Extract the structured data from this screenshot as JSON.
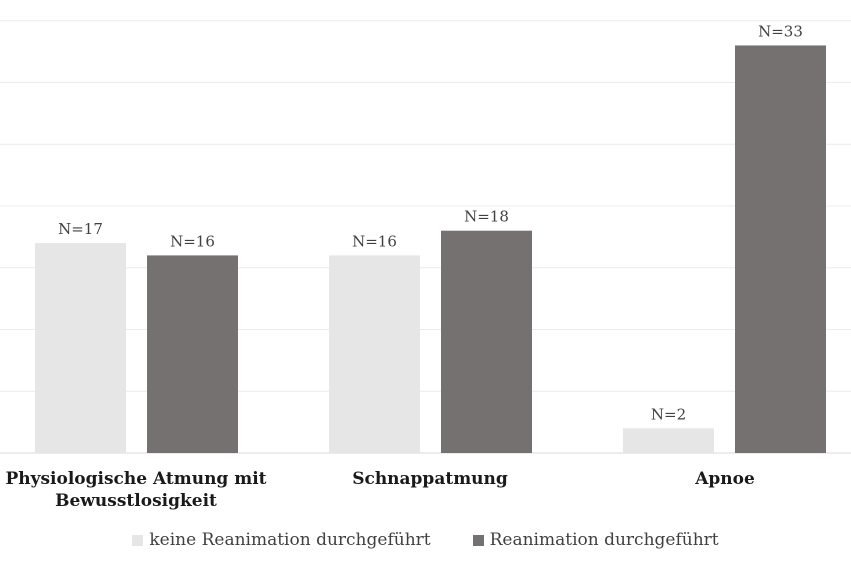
{
  "chart_data": {
    "type": "bar",
    "categories": [
      "Physiologische Atmung mit Bewusstlosigkeit",
      "Schnappatmung",
      "Apnoe"
    ],
    "category_lines": [
      [
        "Physiologische Atmung mit",
        "Bewusstlosigkeit"
      ],
      [
        "Schnappatmung"
      ],
      [
        "Apnoe"
      ]
    ],
    "series": [
      {
        "name": "keine Reanimation durchgeführt",
        "values": [
          17,
          16,
          2
        ],
        "labels": [
          "N=17",
          "N=16",
          "N=2"
        ],
        "color": "#e6e6e6"
      },
      {
        "name": "Reanimation durchgeführt",
        "values": [
          16,
          18,
          33
        ],
        "labels": [
          "N=16",
          "N=18",
          "N=33"
        ],
        "color": "#767171"
      }
    ],
    "ylim": [
      0,
      35
    ],
    "grid": true,
    "legend_position": "bottom"
  }
}
